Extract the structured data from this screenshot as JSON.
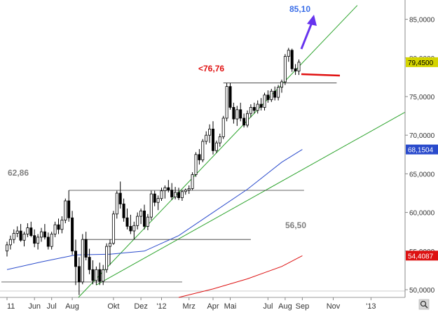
{
  "chart_data": {
    "type": "candlestick",
    "title": "",
    "ylim": [
      49000,
      87500
    ],
    "y_ticks": [
      {
        "value": 50000,
        "label": "50,0000"
      },
      {
        "value": 55000,
        "label": "55,0000"
      },
      {
        "value": 60000,
        "label": "60,0000"
      },
      {
        "value": 65000,
        "label": "65,0000"
      },
      {
        "value": 70000,
        "label": "70,0000"
      },
      {
        "value": 75000,
        "label": "75,0000"
      },
      {
        "value": 80000,
        "label": "80,0000"
      },
      {
        "value": 85000,
        "label": "85,0000"
      }
    ],
    "x_labels": [
      "11",
      "Jun",
      "Jul",
      "Aug",
      "Okt",
      "Dez",
      "'12",
      "Mrz",
      "Apr",
      "Mai",
      "Jul",
      "Aug",
      "Sep",
      "Nov",
      "'13"
    ],
    "x_label_weeks": [
      0,
      8,
      13,
      19,
      31,
      39,
      45,
      53,
      60,
      65,
      76,
      81,
      86,
      95,
      106
    ],
    "last_price": {
      "value": 79450,
      "label": "79,4500",
      "color": "#d4d400"
    },
    "ma_blue": {
      "name": "68,1504",
      "color": "#2a4bcc",
      "points": [
        [
          0,
          52600
        ],
        [
          10,
          53600
        ],
        [
          20,
          54500
        ],
        [
          30,
          54600
        ],
        [
          40,
          55000
        ],
        [
          50,
          57000
        ],
        [
          60,
          60000
        ],
        [
          70,
          63000
        ],
        [
          80,
          66500
        ],
        [
          86,
          68150
        ]
      ]
    },
    "ma_red": {
      "name": "54,4087",
      "color": "#dd1111",
      "points": [
        [
          50,
          49000
        ],
        [
          60,
          50100
        ],
        [
          70,
          51400
        ],
        [
          80,
          53000
        ],
        [
          86,
          54400
        ]
      ]
    },
    "annotations": {
      "target_label": "85,10",
      "resistance_label": "<76,76",
      "high_label": "62,86",
      "low_label": "56,50"
    },
    "candles": [
      [
        55000,
        56200,
        54300,
        55800
      ],
      [
        55800,
        57000,
        55200,
        56500
      ],
      [
        56500,
        57800,
        56000,
        57300
      ],
      [
        57300,
        58200,
        56800,
        57600
      ],
      [
        57600,
        58500,
        56200,
        56400
      ],
      [
        56400,
        57500,
        55600,
        57200
      ],
      [
        57200,
        58600,
        56800,
        58000
      ],
      [
        58000,
        58800,
        56800,
        57000
      ],
      [
        57000,
        57800,
        55500,
        56000
      ],
      [
        56000,
        57200,
        55200,
        56800
      ],
      [
        56800,
        58000,
        56200,
        57500
      ],
      [
        57500,
        58500,
        56500,
        56800
      ],
      [
        56800,
        57400,
        55200,
        55600
      ],
      [
        55600,
        57500,
        55200,
        57200
      ],
      [
        57200,
        58800,
        56800,
        58400
      ],
      [
        58400,
        59200,
        57200,
        57800
      ],
      [
        57800,
        59500,
        57300,
        59000
      ],
      [
        59000,
        61800,
        58600,
        61500
      ],
      [
        61500,
        62860,
        58800,
        59300
      ],
      [
        59300,
        60200,
        54500,
        55000
      ],
      [
        55000,
        56500,
        50600,
        53000
      ],
      [
        53000,
        54200,
        49300,
        51000
      ],
      [
        51000,
        57200,
        50700,
        56500
      ],
      [
        56500,
        57500,
        53800,
        54200
      ],
      [
        54200,
        55300,
        52000,
        52600
      ],
      [
        52600,
        53800,
        50700,
        51200
      ],
      [
        51200,
        53000,
        50600,
        52600
      ],
      [
        52600,
        53500,
        50600,
        51100
      ],
      [
        51100,
        53200,
        50600,
        52600
      ],
      [
        52600,
        56000,
        52200,
        55600
      ],
      [
        55600,
        56500,
        53200,
        56000
      ],
      [
        56000,
        60200,
        55800,
        59800
      ],
      [
        59800,
        62800,
        59200,
        62500
      ],
      [
        62500,
        64000,
        60500,
        61100
      ],
      [
        61100,
        61800,
        58800,
        59300
      ],
      [
        59300,
        60500,
        57800,
        58200
      ],
      [
        58200,
        59700,
        57200,
        57600
      ],
      [
        57600,
        58800,
        56500,
        58300
      ],
      [
        58300,
        60000,
        57800,
        59500
      ],
      [
        59500,
        60500,
        58500,
        60200
      ],
      [
        60200,
        61000,
        57800,
        58200
      ],
      [
        58200,
        59800,
        57700,
        59400
      ],
      [
        59400,
        62800,
        59000,
        62400
      ],
      [
        62400,
        62800,
        60800,
        61300
      ],
      [
        61300,
        62200,
        60300,
        61800
      ],
      [
        61800,
        63200,
        61500,
        62800
      ],
      [
        62800,
        63500,
        61800,
        63200
      ],
      [
        63200,
        64200,
        62600,
        62900
      ],
      [
        62900,
        63800,
        61600,
        62000
      ],
      [
        62000,
        63300,
        61700,
        62600
      ],
      [
        62600,
        63200,
        61600,
        61900
      ],
      [
        61900,
        62900,
        61500,
        62700
      ],
      [
        62700,
        63100,
        62300,
        62900
      ],
      [
        62900,
        63500,
        62400,
        63100
      ],
      [
        63100,
        65200,
        62900,
        64900
      ],
      [
        64900,
        67800,
        64600,
        67500
      ],
      [
        67500,
        68200,
        66200,
        66800
      ],
      [
        66800,
        69500,
        66500,
        69200
      ],
      [
        69200,
        70500,
        68800,
        70000
      ],
      [
        70000,
        71400,
        69000,
        70800
      ],
      [
        70800,
        71800,
        67500,
        68000
      ],
      [
        68000,
        69300,
        67700,
        69000
      ],
      [
        69000,
        70200,
        68500,
        69800
      ],
      [
        69800,
        72500,
        69500,
        72200
      ],
      [
        72200,
        76760,
        71800,
        76300
      ],
      [
        76300,
        76760,
        73300,
        73600
      ],
      [
        73600,
        74200,
        71500,
        72100
      ],
      [
        72100,
        73800,
        71200,
        73300
      ],
      [
        73300,
        74200,
        71800,
        72200
      ],
      [
        72200,
        72800,
        71000,
        71300
      ],
      [
        71300,
        73200,
        71000,
        72800
      ],
      [
        72800,
        74000,
        72300,
        73600
      ],
      [
        73600,
        74200,
        72800,
        73200
      ],
      [
        73200,
        74500,
        72800,
        74000
      ],
      [
        74000,
        74800,
        73200,
        73600
      ],
      [
        73600,
        75500,
        73200,
        75200
      ],
      [
        75200,
        75800,
        74200,
        74600
      ],
      [
        74600,
        76000,
        74300,
        75700
      ],
      [
        75700,
        76300,
        74500,
        74900
      ],
      [
        74900,
        76500,
        74500,
        76200
      ],
      [
        76200,
        77200,
        75500,
        76900
      ],
      [
        76900,
        80500,
        76500,
        80200
      ],
      [
        80200,
        81300,
        79500,
        81000
      ],
      [
        81000,
        81200,
        78200,
        78600
      ],
      [
        78600,
        79200,
        77800,
        78300
      ],
      [
        78300,
        79800,
        77800,
        79450
      ]
    ]
  }
}
